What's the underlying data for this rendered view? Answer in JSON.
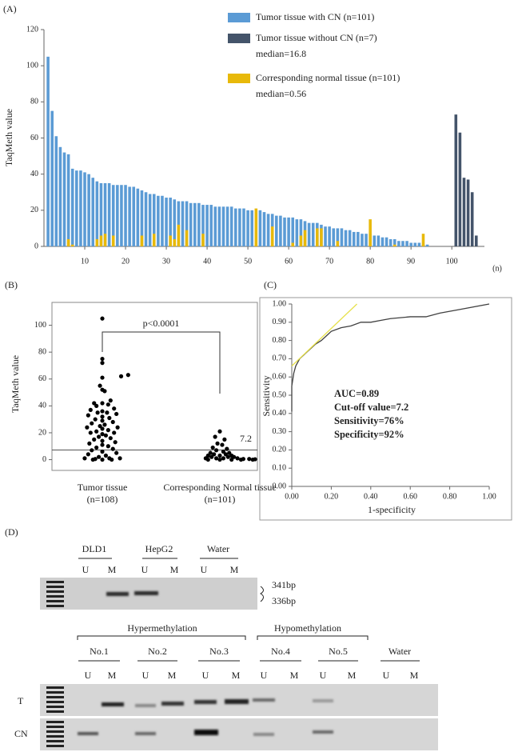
{
  "chart_data": [
    {
      "type": "bar",
      "panel": "(A)",
      "ylabel": "TaqMeth value",
      "xlabel": "(n)",
      "xlim": [
        0,
        108
      ],
      "xticks": [
        10,
        20,
        30,
        40,
        50,
        60,
        70,
        80,
        90,
        100
      ],
      "ylim": [
        0,
        120
      ],
      "yticks": [
        0,
        20,
        40,
        60,
        80,
        100,
        120
      ],
      "annotations": [
        "median=16.8",
        "median=0.56"
      ],
      "series": [
        {
          "name": "Tumor tissue with CN (n=101)",
          "color": "#5b9bd5",
          "x": [
            1,
            2,
            3,
            4,
            5,
            6,
            7,
            8,
            9,
            10,
            11,
            12,
            13,
            14,
            15,
            16,
            17,
            18,
            19,
            20,
            21,
            22,
            23,
            24,
            25,
            26,
            27,
            28,
            29,
            30,
            31,
            32,
            33,
            34,
            35,
            36,
            37,
            38,
            39,
            40,
            41,
            42,
            43,
            44,
            45,
            46,
            47,
            48,
            49,
            50,
            51,
            52,
            53,
            54,
            55,
            56,
            57,
            58,
            59,
            60,
            61,
            62,
            63,
            64,
            65,
            66,
            67,
            68,
            69,
            70,
            71,
            72,
            73,
            74,
            75,
            76,
            77,
            78,
            79,
            80,
            81,
            82,
            83,
            84,
            85,
            86,
            87,
            88,
            89,
            90,
            91,
            92,
            93,
            94
          ],
          "values": [
            105,
            75,
            61,
            55,
            52,
            51,
            43,
            42,
            42,
            41,
            40,
            38,
            36,
            35,
            35,
            35,
            34,
            34,
            34,
            34,
            33,
            33,
            32,
            31,
            30,
            29,
            29,
            28,
            28,
            27,
            27,
            26,
            25,
            25,
            25,
            24,
            24,
            24,
            23,
            23,
            23,
            22,
            22,
            22,
            22,
            22,
            21,
            21,
            21,
            20,
            20,
            20,
            20,
            19,
            18,
            18,
            17,
            17,
            16,
            16,
            16,
            15,
            15,
            14,
            13,
            13,
            13,
            12,
            11,
            11,
            10,
            10,
            10,
            9,
            9,
            8,
            8,
            7,
            7,
            7,
            6,
            6,
            5,
            5,
            4,
            4,
            3,
            3,
            3,
            2,
            2,
            2,
            1,
            1
          ]
        },
        {
          "name": "Tumor tissue without CN (n=7)",
          "color": "#44546a",
          "x": [
            101,
            102,
            103,
            104,
            105,
            106
          ],
          "values": [
            73,
            63,
            38,
            37,
            30,
            6
          ]
        },
        {
          "name": "Corresponding normal tissue (n=101)",
          "color": "#e8b90a",
          "x": [
            6,
            7,
            13,
            14,
            15,
            17,
            24,
            27,
            31,
            32,
            33,
            35,
            39,
            52,
            56,
            61,
            63,
            64,
            67,
            68,
            72,
            80,
            86,
            93
          ],
          "values": [
            4,
            1,
            4,
            6,
            7,
            6,
            6,
            7,
            6,
            4,
            12,
            9,
            7,
            21,
            11,
            2,
            6,
            9,
            10,
            10,
            3,
            15,
            1,
            7
          ]
        }
      ]
    },
    {
      "type": "scatter",
      "panel": "(B)",
      "ylabel": "TaqMeth value",
      "ylim": [
        -8,
        117
      ],
      "yticks": [
        0,
        20,
        40,
        60,
        80,
        100
      ],
      "categories": [
        [
          "Tumor tissue",
          "(n=108)"
        ],
        [
          "Corresponding Normal tissue",
          "(n=101)"
        ]
      ],
      "hline": 7.2,
      "annotation": "p<0.0001",
      "series": [
        {
          "color": "#000000",
          "x": [
            1.0,
            1.0,
            1.0,
            1.22,
            1.16,
            1.0,
            0.98,
            1.0,
            1.02,
            1.07,
            0.93,
            1.0,
            1.05,
            0.95,
            1.1,
            0.9,
            1.0,
            1.04,
            0.96,
            1.12,
            0.88,
            1.0,
            1.06,
            0.94,
            1.0,
            1.09,
            0.91,
            1.02,
            0.98,
            1.13,
            0.87,
            1.0,
            1.05,
            0.95,
            1.1,
            0.9,
            1.0,
            1.03,
            0.97,
            1.07,
            0.93,
            1.0,
            1.11,
            0.89,
            1.0,
            1.05,
            0.95,
            1.09,
            0.91,
            1.0,
            1.12,
            0.88,
            1.03,
            0.97,
            1.06,
            0.94,
            1.0,
            1.08,
            0.92,
            1.15,
            0.85
          ],
          "values": [
            105,
            75,
            72,
            63,
            62,
            61,
            55,
            52,
            51,
            44,
            42,
            42,
            41,
            40,
            38,
            37,
            36,
            35,
            35,
            34,
            33,
            32,
            31,
            30,
            29,
            28,
            27,
            26,
            25,
            24,
            24,
            23,
            22,
            21,
            20,
            20,
            19,
            18,
            17,
            16,
            15,
            14,
            13,
            12,
            11,
            10,
            9,
            8,
            7,
            6,
            5,
            4,
            3,
            2,
            1,
            0.5,
            0,
            0,
            0,
            1,
            1
          ]
        },
        {
          "color": "#000000",
          "x": [
            2.0,
            1.96,
            2.04,
            1.98,
            2.02,
            1.94,
            2.06,
            1.97,
            2.03,
            1.92,
            2.08,
            1.95,
            2.05,
            1.9,
            2.1,
            2.0,
            1.93,
            2.07,
            2.12,
            1.88,
            1.97,
            2.03,
            2.15,
            2.2,
            2.25,
            2.3,
            1.9,
            2.0,
            2.1,
            2.18,
            2.28
          ],
          "values": [
            21,
            17,
            15,
            12,
            11,
            9,
            8,
            7,
            6,
            5,
            5,
            4,
            4,
            3,
            3,
            3,
            2,
            2,
            2,
            1,
            1,
            1,
            1,
            0.5,
            0.5,
            0.3,
            0,
            0,
            0,
            0,
            0
          ]
        }
      ]
    },
    {
      "type": "line",
      "panel": "(C)",
      "ylabel": "Sensitivity",
      "xlabel": "1-specificity",
      "xlim": [
        0,
        1
      ],
      "ylim": [
        0,
        1
      ],
      "xticks": [
        {
          "value": 0,
          "label": "0.00"
        },
        {
          "value": 0.2,
          "label": "0.20"
        },
        {
          "value": 0.4,
          "label": "0.40"
        },
        {
          "value": 0.6,
          "label": "0.60"
        },
        {
          "value": 0.8,
          "label": "0.80"
        },
        {
          "value": 1,
          "label": "1.00"
        }
      ],
      "yticks": [
        {
          "value": 0,
          "label": "0.00"
        },
        {
          "value": 0.1,
          "label": "0.10"
        },
        {
          "value": 0.2,
          "label": "0.20"
        },
        {
          "value": 0.3,
          "label": "0.30"
        },
        {
          "value": 0.4,
          "label": "0.40"
        },
        {
          "value": 0.5,
          "label": "0.50"
        },
        {
          "value": 0.6,
          "label": "0.60"
        },
        {
          "value": 0.7,
          "label": "0.70"
        },
        {
          "value": 0.8,
          "label": "0.80"
        },
        {
          "value": 0.9,
          "label": "0.90"
        },
        {
          "value": 1,
          "label": "1.00"
        }
      ],
      "annotations": [
        "AUC=0.89",
        "Cut-off value=7.2",
        "Sensitivity=76%",
        "Specificity=92%"
      ],
      "series": [
        {
          "color": "#404040",
          "x": [
            0,
            0,
            0.01,
            0.02,
            0.04,
            0.06,
            0.08,
            0.1,
            0.12,
            0.15,
            0.18,
            0.2,
            0.25,
            0.3,
            0.35,
            0.4,
            0.45,
            0.5,
            0.6,
            0.68,
            0.75,
            0.85,
            1
          ],
          "values": [
            0.41,
            0.55,
            0.62,
            0.66,
            0.7,
            0.72,
            0.74,
            0.76,
            0.78,
            0.8,
            0.83,
            0.85,
            0.87,
            0.88,
            0.9,
            0.9,
            0.91,
            0.92,
            0.93,
            0.93,
            0.95,
            0.97,
            1
          ]
        },
        {
          "color": "#e6e04a",
          "x": [
            0,
            0.33
          ],
          "values": [
            0.66,
            1
          ]
        }
      ]
    }
  ],
  "gel": {
    "panel": "(D)",
    "lanes": [
      "U",
      "M"
    ],
    "controls": [
      "DLD1",
      "HepG2",
      "Water"
    ],
    "sizes": [
      "341bp",
      "336bp"
    ],
    "groups": [
      "Hypermethylation",
      "Hypomethylation"
    ],
    "samples": [
      "No.1",
      "No.2",
      "No.3",
      "No.4",
      "No.5",
      "Water"
    ],
    "rows": [
      "T",
      "CN"
    ]
  }
}
